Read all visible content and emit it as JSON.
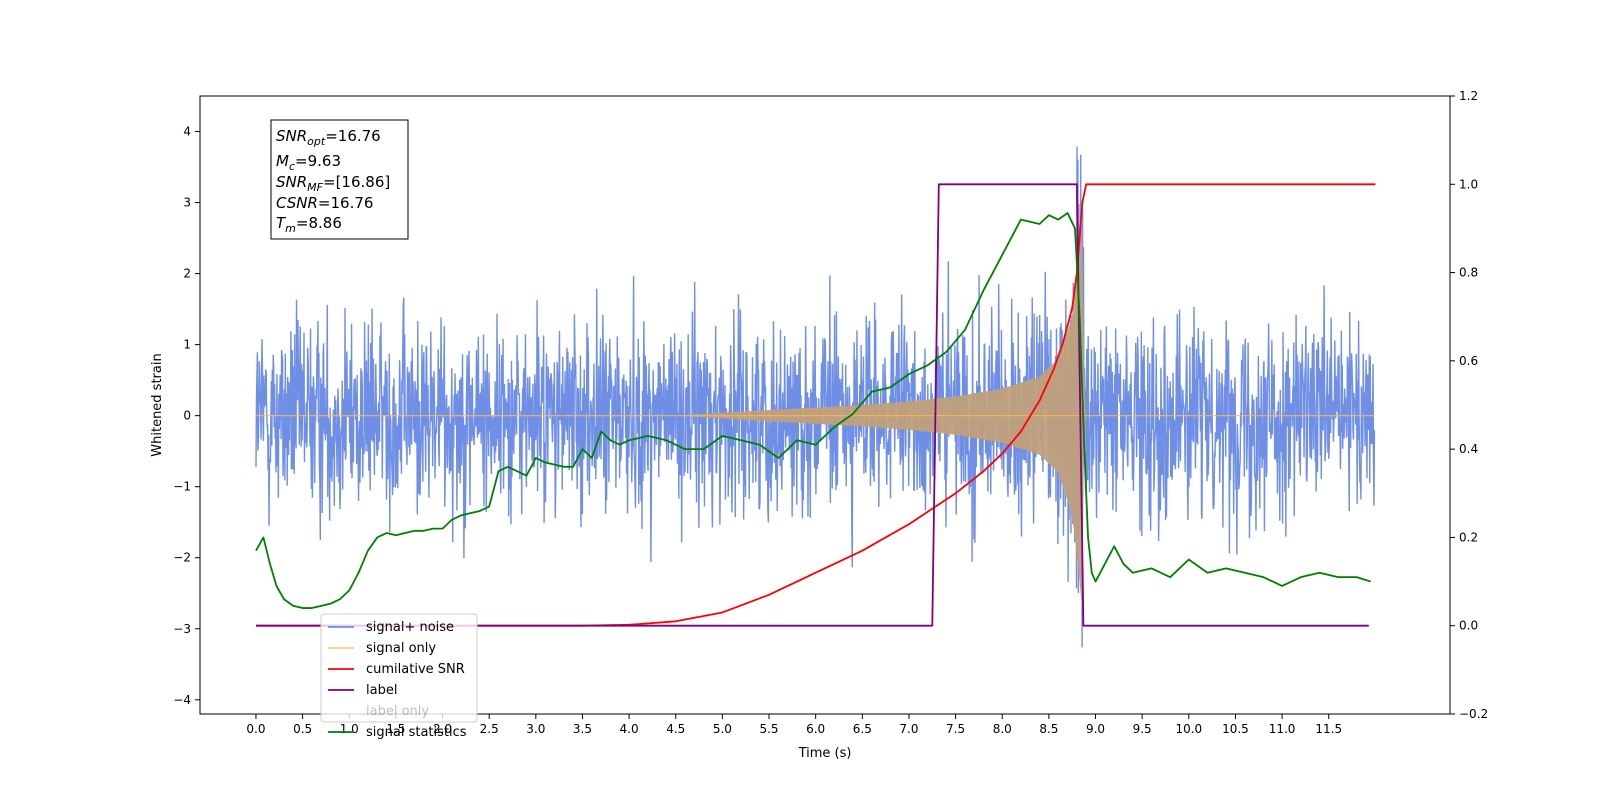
{
  "chart_data": {
    "type": "line",
    "xlabel": "Time (s)",
    "ylabel": "Whitened strain",
    "xlim": [
      -0.6,
      12.8
    ],
    "ylim": [
      -4.2,
      4.5
    ],
    "y2lim": [
      -0.2,
      1.2
    ],
    "x_ticks": [
      "0.0",
      "0.5",
      "1.0",
      "1.5",
      "2.0",
      "2.5",
      "3.0",
      "3.5",
      "4.0",
      "4.5",
      "5.0",
      "5.5",
      "6.0",
      "6.5",
      "7.0",
      "7.5",
      "8.0",
      "8.5",
      "9.0",
      "9.5",
      "10.0",
      "10.5",
      "11.0",
      "11.5"
    ],
    "y_ticks": [
      "−4",
      "−3",
      "−2",
      "−1",
      "0",
      "1",
      "2",
      "3",
      "4"
    ],
    "y2_ticks": [
      "−0.2",
      "0.0",
      "0.2",
      "0.4",
      "0.6",
      "0.8",
      "1.0",
      "1.2"
    ],
    "grid": false,
    "legend_position": "lower-left",
    "annotation": {
      "snr_opt": {
        "base": "SNR",
        "sub": "opt",
        "value": "=16.76"
      },
      "mc": {
        "base": "M",
        "sub": "c",
        "value": "=9.63"
      },
      "snr_mf": {
        "base": "SNR",
        "sub": "MF",
        "value": "=[16.86]"
      },
      "csnr": {
        "base": "CSNR",
        "value": "=16.76"
      },
      "tm": {
        "base": "T",
        "sub": "m",
        "value": "=8.86"
      }
    },
    "series": [
      {
        "name": "signal+ noise",
        "color": "#6f8fe6",
        "axis": "left",
        "noise": {
          "t_start": 0.0,
          "t_end": 11.99,
          "typical_range": [
            -1.8,
            2.2
          ],
          "max": 3.8,
          "min": -3.75
        }
      },
      {
        "name": "signal only",
        "color": "#ffb84d",
        "axis": "left",
        "chirp_envelope": {
          "t": [
            0.0,
            4.5,
            5.5,
            6.5,
            7.0,
            7.5,
            8.0,
            8.4,
            8.6,
            8.75,
            8.82,
            8.86,
            8.88,
            12.0
          ],
          "amp": [
            0.0,
            0.0,
            0.08,
            0.15,
            0.2,
            0.27,
            0.38,
            0.55,
            0.8,
            1.4,
            2.2,
            2.8,
            0.0,
            0.0
          ]
        }
      },
      {
        "name": "cumilative SNR",
        "color": "#ff0000",
        "axis": "right",
        "x": [
          0.0,
          3.5,
          4.0,
          4.5,
          5.0,
          5.5,
          6.0,
          6.5,
          7.0,
          7.5,
          7.8,
          8.0,
          8.2,
          8.4,
          8.55,
          8.65,
          8.75,
          8.8,
          8.83,
          8.86,
          8.9,
          12.0
        ],
        "y": [
          0.0,
          0.0,
          0.002,
          0.01,
          0.03,
          0.07,
          0.12,
          0.17,
          0.23,
          0.3,
          0.35,
          0.39,
          0.44,
          0.51,
          0.58,
          0.64,
          0.72,
          0.8,
          0.88,
          0.96,
          1.0,
          1.0
        ]
      },
      {
        "name": "label",
        "color": "#800080",
        "axis": "right",
        "x": [
          0.0,
          7.25,
          7.32,
          8.8,
          8.87,
          11.93
        ],
        "y": [
          0.0,
          0.0,
          1.0,
          1.0,
          0.0,
          0.0
        ]
      },
      {
        "name": "label only",
        "color": "#ffffff",
        "axis": "right",
        "x": [],
        "y": []
      },
      {
        "name": "signal statistics",
        "color": "#008000",
        "axis": "right",
        "x": [
          0.0,
          0.08,
          0.15,
          0.22,
          0.3,
          0.4,
          0.5,
          0.6,
          0.7,
          0.8,
          0.9,
          1.0,
          1.1,
          1.2,
          1.3,
          1.4,
          1.5,
          1.6,
          1.7,
          1.8,
          1.9,
          2.0,
          2.1,
          2.2,
          2.3,
          2.4,
          2.5,
          2.6,
          2.7,
          2.8,
          2.9,
          3.0,
          3.1,
          3.2,
          3.3,
          3.4,
          3.5,
          3.6,
          3.7,
          3.8,
          3.9,
          4.0,
          4.2,
          4.4,
          4.6,
          4.8,
          5.0,
          5.2,
          5.4,
          5.6,
          5.8,
          6.0,
          6.2,
          6.4,
          6.6,
          6.8,
          7.0,
          7.2,
          7.4,
          7.6,
          7.8,
          8.0,
          8.2,
          8.4,
          8.5,
          8.6,
          8.7,
          8.78,
          8.83,
          8.88,
          8.92,
          8.96,
          9.0,
          9.1,
          9.2,
          9.3,
          9.4,
          9.6,
          9.8,
          10.0,
          10.2,
          10.4,
          10.6,
          10.8,
          11.0,
          11.2,
          11.4,
          11.6,
          11.8,
          11.95
        ],
        "y": [
          0.17,
          0.2,
          0.14,
          0.09,
          0.06,
          0.045,
          0.04,
          0.04,
          0.045,
          0.05,
          0.06,
          0.08,
          0.12,
          0.17,
          0.2,
          0.21,
          0.205,
          0.21,
          0.215,
          0.215,
          0.22,
          0.22,
          0.24,
          0.25,
          0.255,
          0.26,
          0.27,
          0.35,
          0.36,
          0.35,
          0.34,
          0.38,
          0.37,
          0.365,
          0.36,
          0.36,
          0.4,
          0.38,
          0.44,
          0.42,
          0.41,
          0.42,
          0.43,
          0.42,
          0.4,
          0.4,
          0.43,
          0.42,
          0.41,
          0.38,
          0.42,
          0.41,
          0.45,
          0.48,
          0.53,
          0.54,
          0.57,
          0.59,
          0.62,
          0.67,
          0.76,
          0.84,
          0.92,
          0.91,
          0.93,
          0.92,
          0.935,
          0.9,
          0.7,
          0.4,
          0.2,
          0.12,
          0.1,
          0.14,
          0.18,
          0.14,
          0.12,
          0.13,
          0.11,
          0.15,
          0.12,
          0.13,
          0.12,
          0.11,
          0.09,
          0.11,
          0.12,
          0.11,
          0.11,
          0.1
        ]
      }
    ]
  }
}
